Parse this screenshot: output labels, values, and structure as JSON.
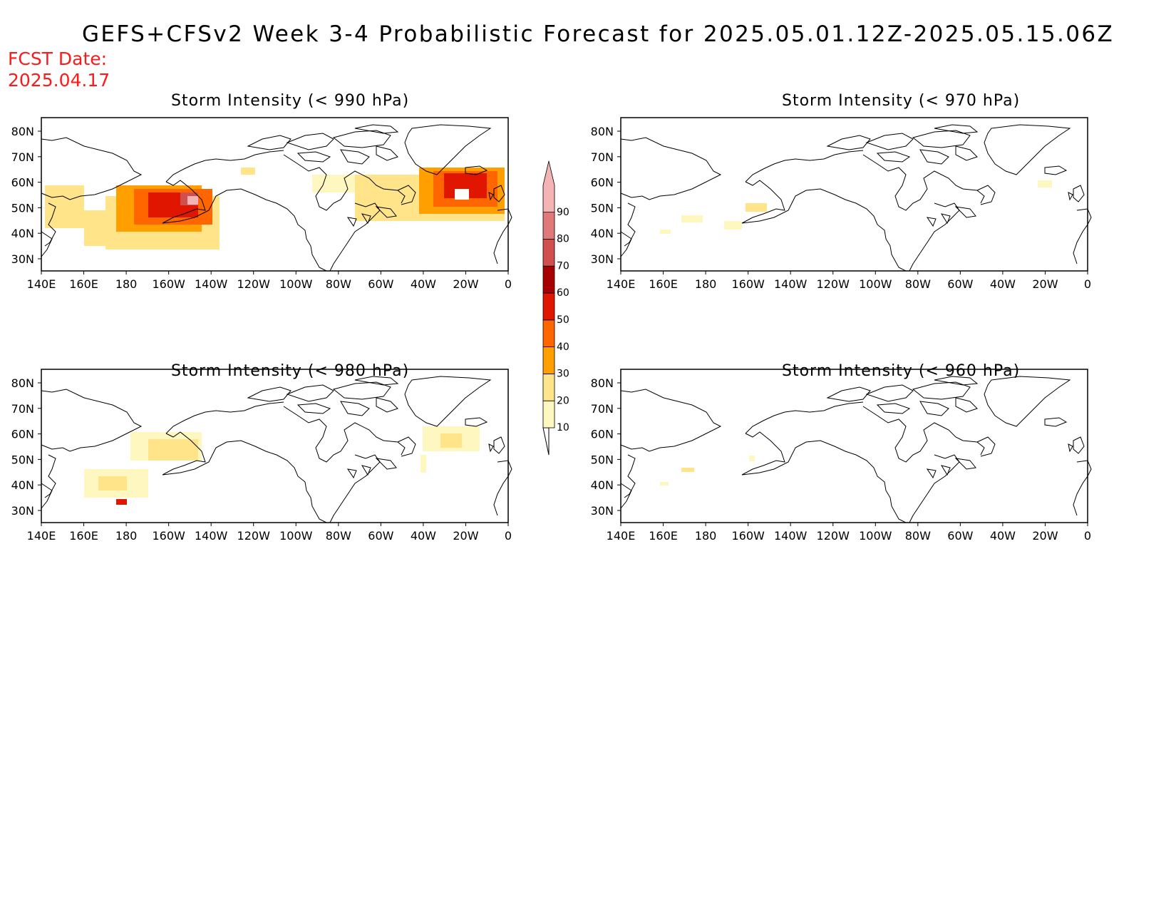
{
  "figure": {
    "title": "GEFS+CFSv2 Week 3-4 Probabilistic Forecast for 2025.05.01.12Z-2025.05.15.06Z",
    "fcst_label": "FCST Date:",
    "fcst_date": "2025.04.17"
  },
  "colorbar": {
    "levels": [
      "10",
      "20",
      "30",
      "40",
      "50",
      "60",
      "70",
      "80",
      "90"
    ],
    "colors": [
      "#fff7c0",
      "#ffe48a",
      "#ffa000",
      "#ff6600",
      "#e01600",
      "#a80000",
      "#d05050",
      "#e07a7a",
      "#f4b4b4"
    ]
  },
  "axes": {
    "lat_labels": [
      "80N",
      "70N",
      "60N",
      "50N",
      "40N",
      "30N"
    ],
    "lon_labels": [
      "140E",
      "160E",
      "180",
      "160W",
      "140W",
      "120W",
      "100W",
      "80W",
      "60W",
      "40W",
      "20W",
      "0"
    ]
  },
  "panels": [
    {
      "title": "Storm Intensity (< 990 hPa)",
      "threshold": "990 hPa"
    },
    {
      "title": "Storm Intensity (< 970 hPa)",
      "threshold": "970 hPa"
    },
    {
      "title": "Storm Intensity (< 980 hPa)",
      "threshold": "980 hPa"
    },
    {
      "title": "Storm Intensity (< 960 hPa)",
      "threshold": "960 hPa"
    }
  ]
}
